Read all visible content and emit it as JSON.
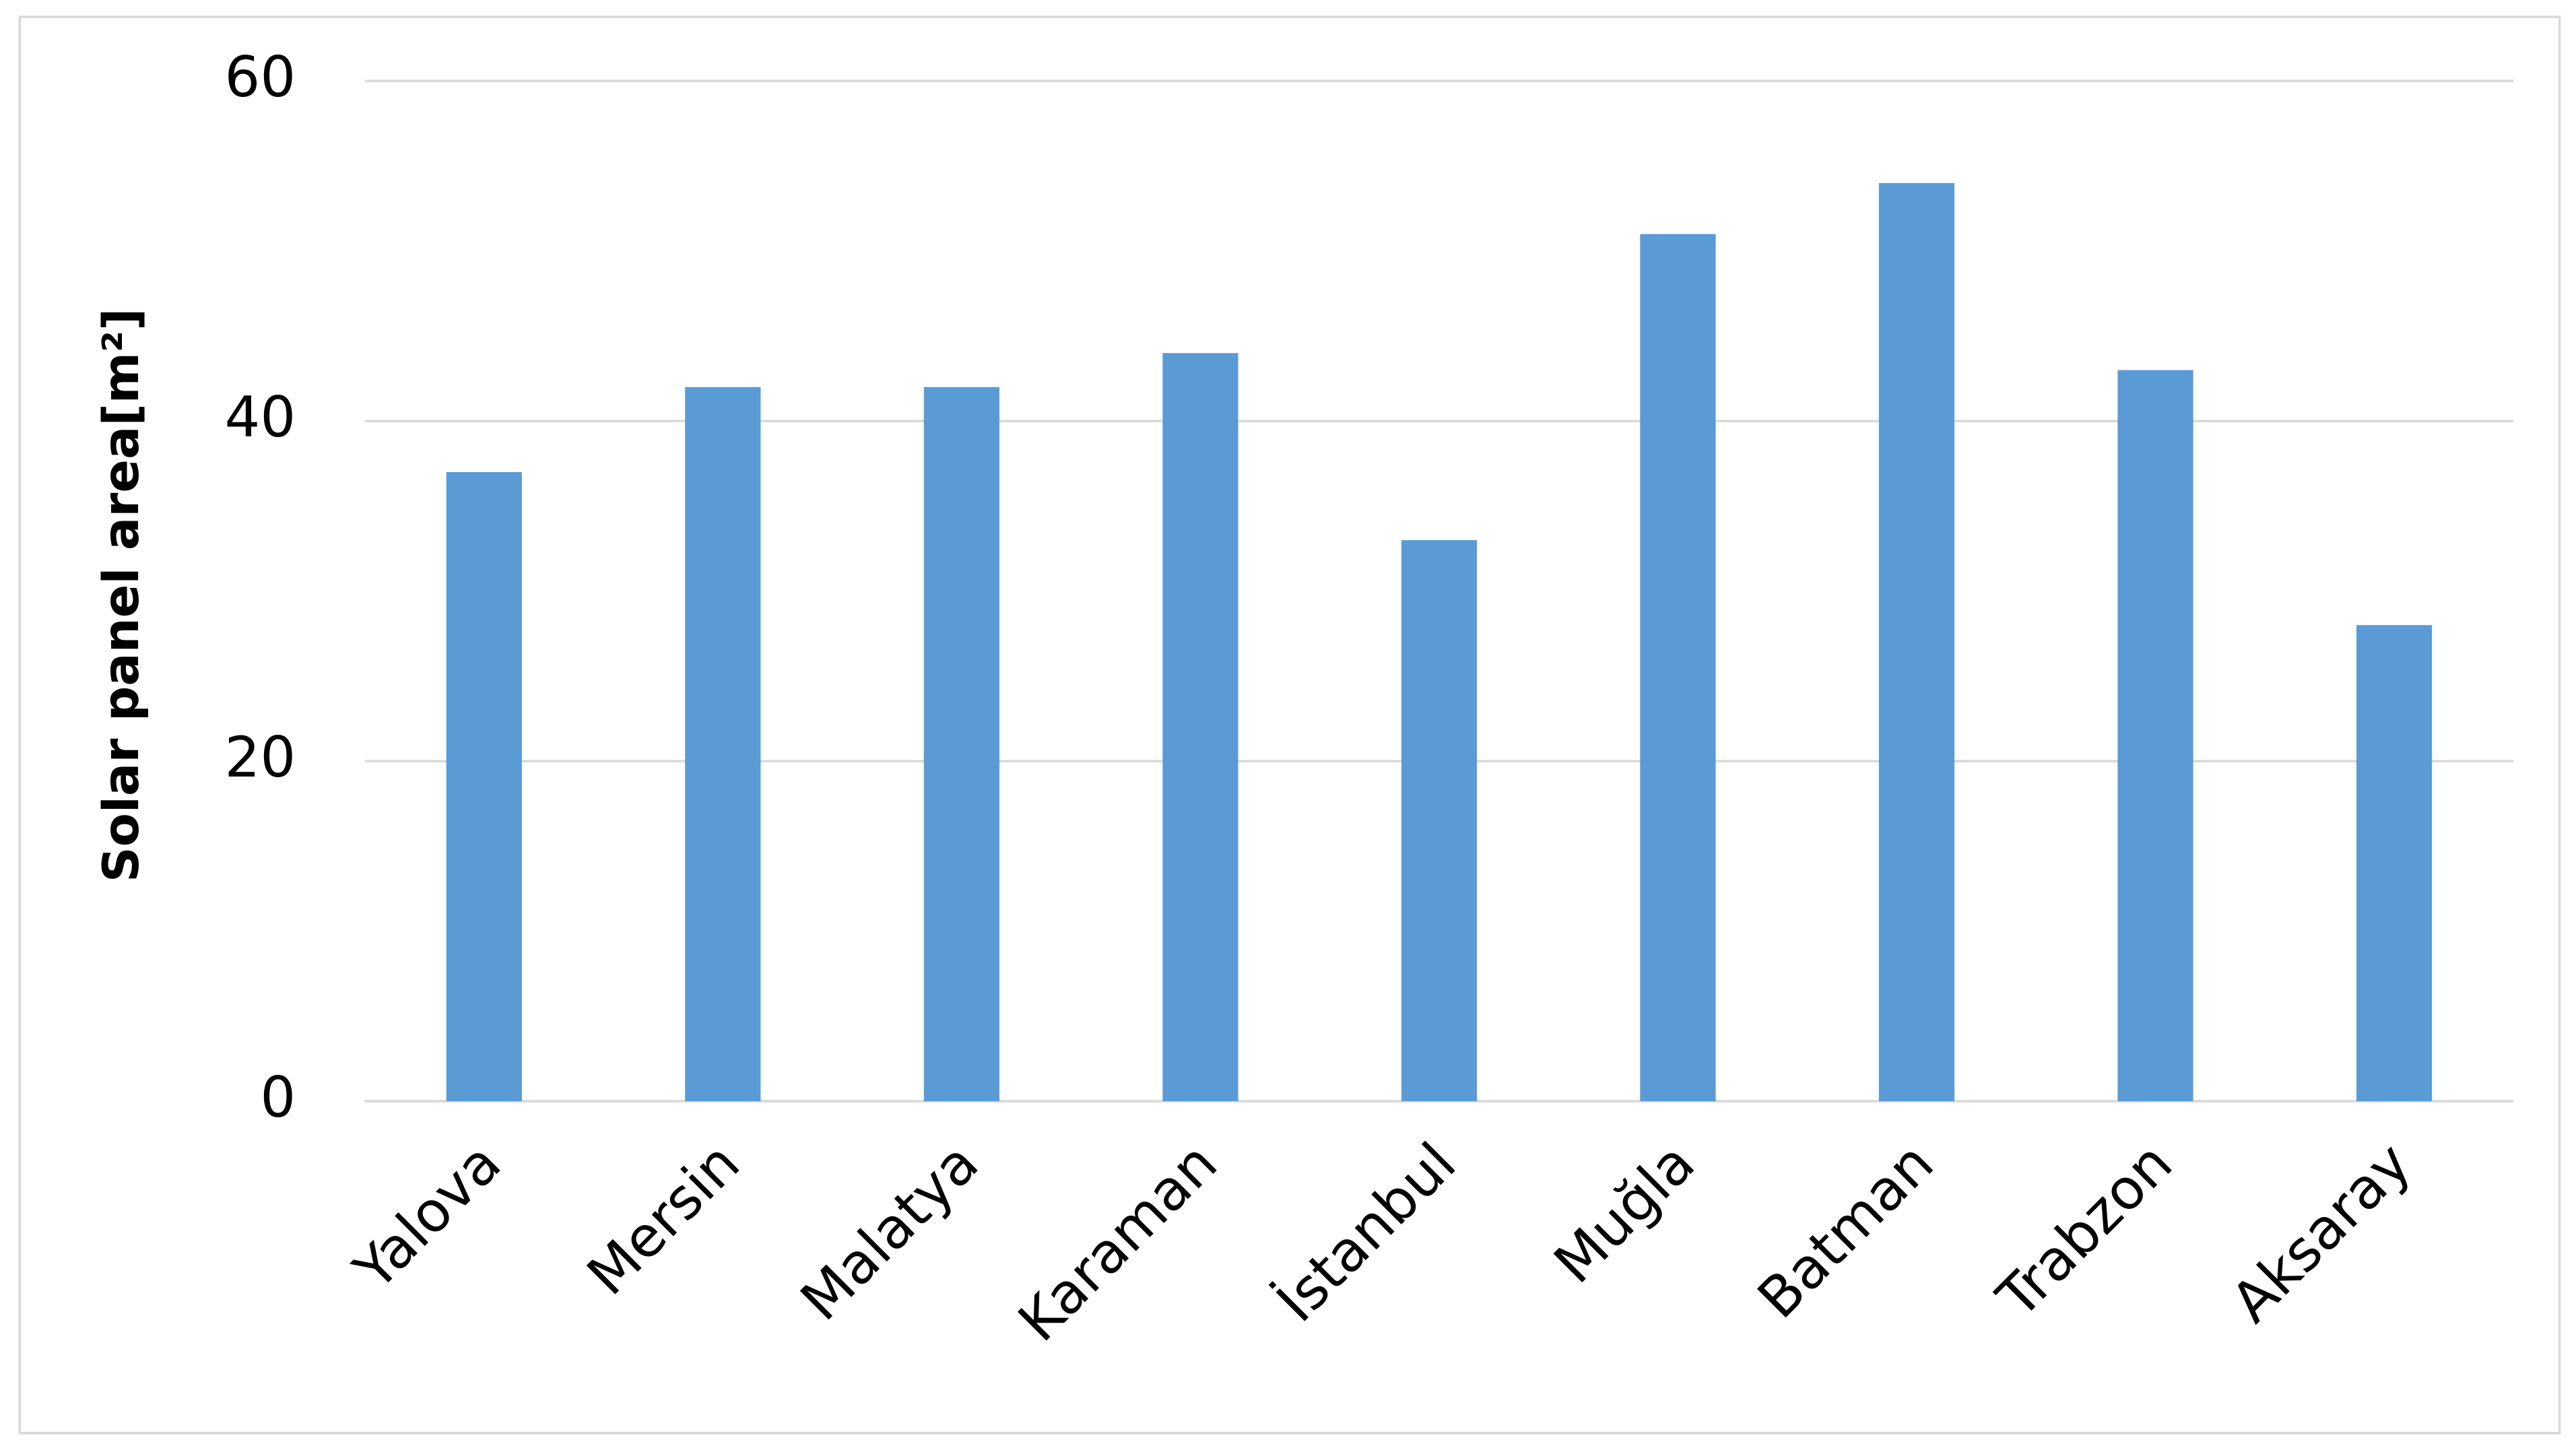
{
  "chart_data": {
    "type": "bar",
    "y_label": "Solar panel area[m²]",
    "categories": [
      "Yalova",
      "Mersin",
      "Malatya",
      "Karaman",
      "İstanbul",
      "Muğla",
      "Batman",
      "Trabzon",
      "Aksaray"
    ],
    "values": [
      37,
      42,
      42,
      44,
      33,
      51,
      54,
      43,
      28
    ],
    "color": "#5b9bd5",
    "ylim": [
      0,
      60
    ],
    "yticks": [
      0,
      20,
      40,
      60
    ],
    "grid": true
  }
}
